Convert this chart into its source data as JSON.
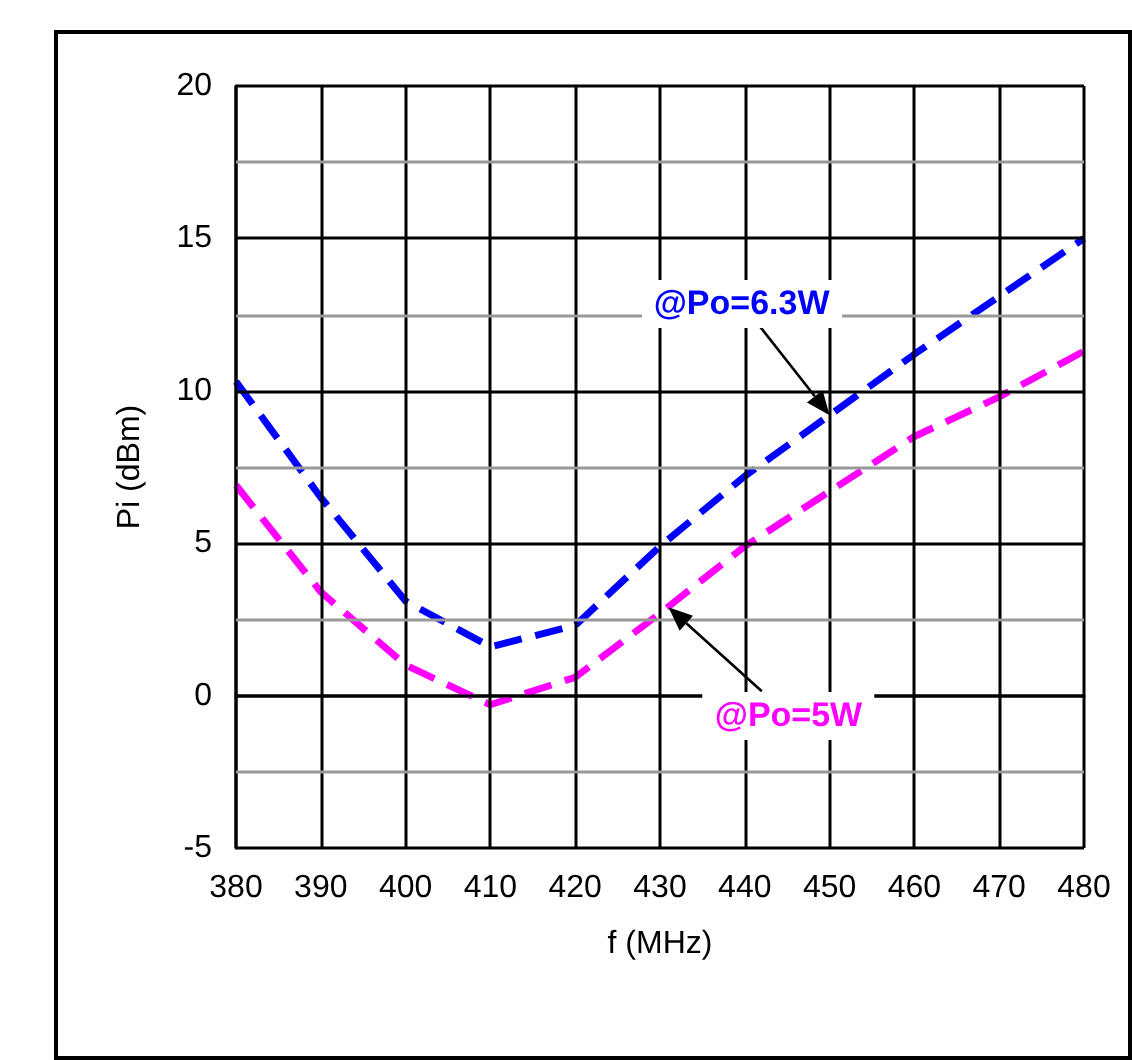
{
  "chart_data": {
    "type": "line",
    "xlabel": "f (MHz)",
    "ylabel": "Pi (dBm)",
    "x": [
      380,
      390,
      400,
      410,
      420,
      430,
      440,
      450,
      460,
      470,
      480
    ],
    "series": [
      {
        "color": "#0000ff",
        "values": [
          10.3,
          6.5,
          3.1,
          1.6,
          2.3,
          4.9,
          7.2,
          9.2,
          11.2,
          13.1,
          15.0
        ]
      },
      {
        "color": "#ff00ff",
        "values": [
          6.9,
          3.4,
          1.0,
          -0.3,
          0.6,
          2.7,
          4.9,
          6.7,
          8.5,
          9.8,
          11.3
        ]
      }
    ],
    "annotations": [
      {
        "text": "@Po=6.3W",
        "x": 450,
        "y": 9.2
      },
      {
        "text": "@Po=5W",
        "x": 431,
        "y": 2.9
      }
    ],
    "xlim": [
      380,
      480
    ],
    "xticks": [
      380,
      390,
      400,
      410,
      420,
      430,
      440,
      450,
      460,
      470,
      480
    ],
    "ylim": [
      -5,
      20
    ],
    "yticks": [
      -5,
      {
        "value": -2.5,
        "label": null
      },
      0,
      {
        "value": 2.5,
        "label": null
      },
      5,
      {
        "value": 7.5,
        "label": null
      },
      10,
      {
        "value": 12.5,
        "label": null
      },
      15,
      {
        "value": 17.5,
        "label": null
      },
      20
    ],
    "grid": true,
    "line_style": "dashed",
    "marker": "none"
  }
}
